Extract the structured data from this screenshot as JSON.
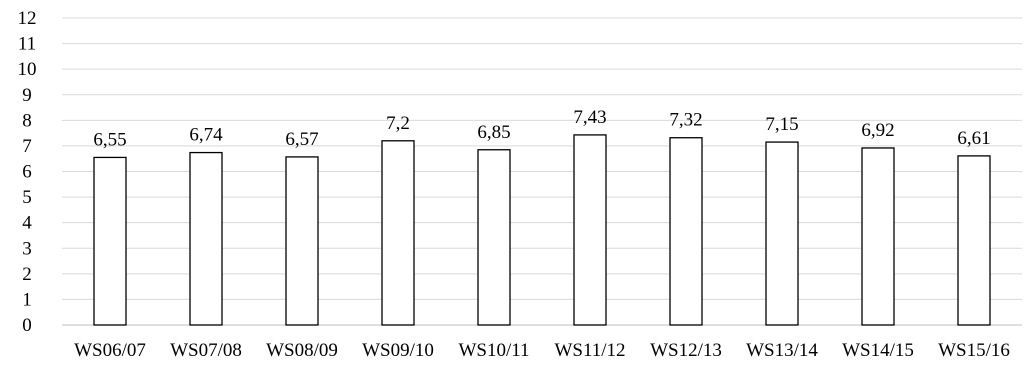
{
  "chart_data": {
    "type": "bar",
    "title": "",
    "xlabel": "",
    "ylabel": "",
    "categories": [
      "WS06/07",
      "WS07/08",
      "WS08/09",
      "WS09/10",
      "WS10/11",
      "WS11/12",
      "WS12/13",
      "WS13/14",
      "WS14/15",
      "WS15/16"
    ],
    "values": [
      6.55,
      6.74,
      6.57,
      7.2,
      6.85,
      7.43,
      7.32,
      7.15,
      6.92,
      6.61
    ],
    "data_labels": [
      "6,55",
      "6,74",
      "6,57",
      "7,2",
      "6,85",
      "7,43",
      "7,32",
      "7,15",
      "6,92",
      "6,61"
    ],
    "ylim": [
      0,
      12
    ],
    "yticks": [
      "0",
      "1",
      "2",
      "3",
      "4",
      "5",
      "6",
      "7",
      "8",
      "9",
      "10",
      "11",
      "12"
    ],
    "grid": true,
    "legend": "none",
    "colors": {
      "bar_fill": "#ffffff",
      "bar_stroke": "#000000",
      "grid": "#d9d9d9"
    }
  }
}
